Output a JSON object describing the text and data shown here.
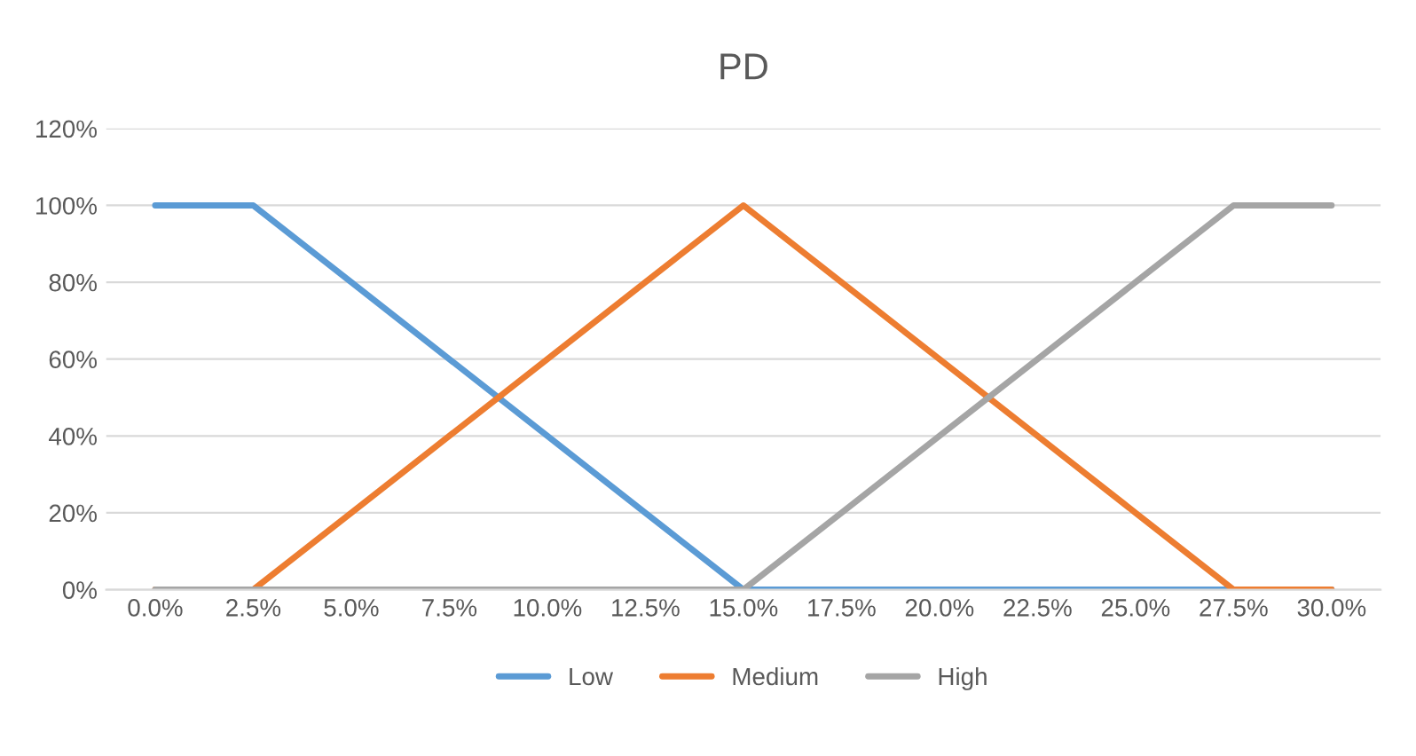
{
  "chart_data": {
    "type": "line",
    "title": "PD",
    "categories": [
      "0.0%",
      "2.5%",
      "5.0%",
      "7.5%",
      "10.0%",
      "12.5%",
      "15.0%",
      "17.5%",
      "20.0%",
      "22.5%",
      "25.0%",
      "27.5%",
      "30.0%"
    ],
    "series": [
      {
        "name": "Low",
        "color": "#5b9bd5",
        "values": [
          100,
          100,
          80,
          60,
          40,
          20,
          0,
          0,
          0,
          0,
          0,
          0,
          0
        ]
      },
      {
        "name": "Medium",
        "color": "#ed7d31",
        "values": [
          0,
          0,
          20,
          40,
          60,
          80,
          100,
          80,
          60,
          40,
          20,
          0,
          0
        ]
      },
      {
        "name": "High",
        "color": "#a5a5a5",
        "values": [
          0,
          0,
          0,
          0,
          0,
          0,
          0,
          20,
          40,
          60,
          80,
          100,
          100
        ]
      }
    ],
    "ylim": [
      0,
      120
    ],
    "yticks": [
      {
        "value": 0,
        "label": "0%"
      },
      {
        "value": 20,
        "label": "20%"
      },
      {
        "value": 40,
        "label": "40%"
      },
      {
        "value": 60,
        "label": "60%"
      },
      {
        "value": 80,
        "label": "80%"
      },
      {
        "value": 100,
        "label": "100%"
      },
      {
        "value": 120,
        "label": "120%"
      }
    ],
    "grid": "y",
    "legend": "bottom",
    "marker": "none",
    "line_style": "solid"
  }
}
